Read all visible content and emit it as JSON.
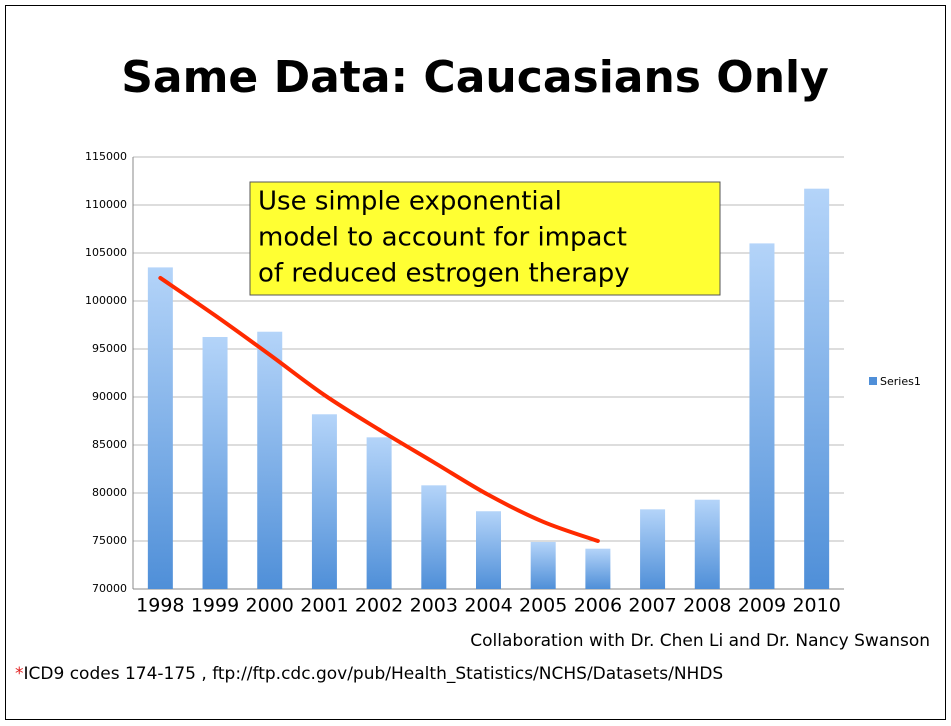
{
  "title": "Same Data: Caucasians Only",
  "chart_data": {
    "type": "bar",
    "categories": [
      "1998",
      "1999",
      "2000",
      "2001",
      "2002",
      "2003",
      "2004",
      "2005",
      "2006",
      "2007",
      "2008",
      "2009",
      "2010"
    ],
    "series": [
      {
        "name": "Series1",
        "color": "#4f8fd8",
        "values": [
          103500,
          96250,
          96800,
          88200,
          85800,
          80800,
          78100,
          74900,
          74200,
          78300,
          79300,
          106000,
          111700
        ]
      }
    ],
    "trend": {
      "color": "#ff2a00",
      "values": [
        102400,
        98500,
        94400,
        90200,
        86600,
        83200,
        79800,
        77000,
        75000
      ]
    },
    "ylim": [
      70000,
      115000
    ],
    "yticks": [
      70000,
      75000,
      80000,
      85000,
      90000,
      95000,
      100000,
      105000,
      110000,
      115000
    ],
    "grid": true,
    "legend": "right",
    "annotation": [
      "Use simple exponential",
      "model to account for impact",
      "of reduced estrogen therapy"
    ]
  },
  "credit": "Collaboration with Dr. Chen Li and Dr. Nancy Swanson",
  "footnote": {
    "marker": "*",
    "text": "ICD9 codes 174-175 , ftp://ftp.cdc.gov/pub/Health_Statistics/NCHS/Datasets/NHDS"
  }
}
